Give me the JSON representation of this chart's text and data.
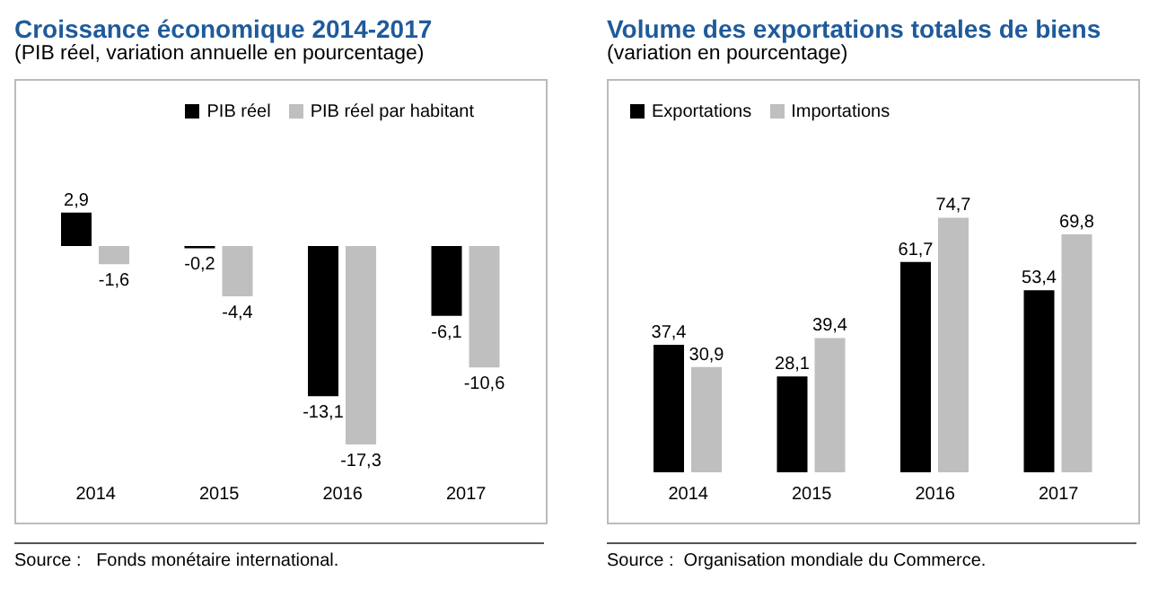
{
  "chart_data": [
    {
      "type": "bar",
      "title": "Croissance économique 2014-2017",
      "subtitle": "(PIB réel, variation annuelle en pourcentage)",
      "categories": [
        "2014",
        "2015",
        "2016",
        "2017"
      ],
      "series": [
        {
          "name": "PIB réel",
          "color": "#000000",
          "values": [
            2.9,
            -0.2,
            -13.1,
            -6.1
          ],
          "value_labels": [
            "2,9",
            "-0,2",
            "-13,1",
            "-6,1"
          ]
        },
        {
          "name": "PIB réel par habitant",
          "color": "#bfbfbf",
          "values": [
            -1.6,
            -4.4,
            -17.3,
            -10.6
          ],
          "value_labels": [
            "-1,6",
            "-4,4",
            "-17,3",
            "-10,6"
          ]
        }
      ],
      "legend": "top right",
      "grid": false,
      "annotations": [
        "Source :   Fonds monétaire international."
      ]
    },
    {
      "type": "bar",
      "title": "Volume des exportations totales de biens",
      "subtitle": "(variation en pourcentage)",
      "categories": [
        "2014",
        "2015",
        "2016",
        "2017"
      ],
      "series": [
        {
          "name": "Exportations",
          "color": "#000000",
          "values": [
            37.4,
            28.1,
            61.7,
            53.4
          ],
          "value_labels": [
            "37,4",
            "28,1",
            "61,7",
            "53,4"
          ]
        },
        {
          "name": "Importations",
          "color": "#bfbfbf",
          "values": [
            30.9,
            39.4,
            74.7,
            69.8
          ],
          "value_labels": [
            "30,9",
            "39,4",
            "74,7",
            "69,8"
          ]
        }
      ],
      "legend": "top left",
      "grid": false,
      "annotations": [
        "Source :  Organisation mondiale du Commerce."
      ]
    }
  ]
}
